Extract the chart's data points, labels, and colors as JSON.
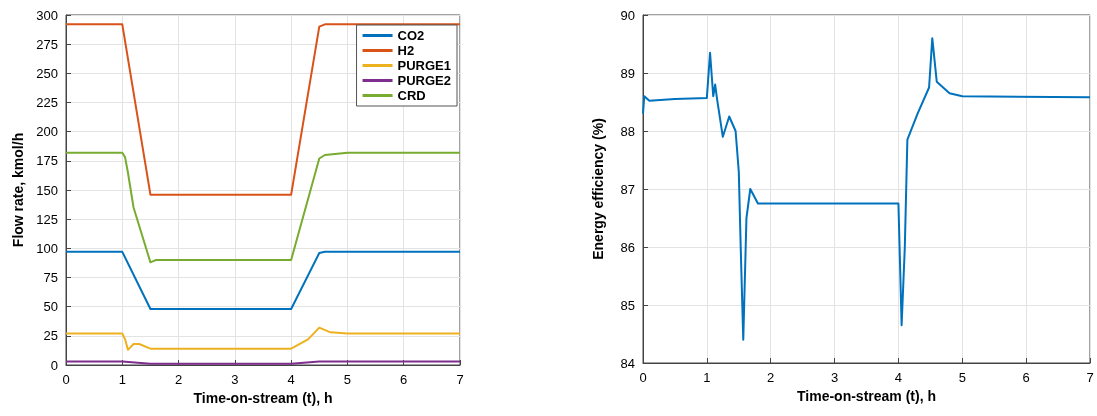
{
  "chart_data": [
    {
      "type": "line",
      "xlabel": "Time-on-stream (t), h",
      "ylabel": "Flow rate, kmol/h",
      "xlim": [
        0,
        7
      ],
      "xticks": [
        0,
        1,
        2,
        3,
        4,
        5,
        6,
        7
      ],
      "ylim": [
        0,
        300
      ],
      "yticks": [
        0,
        25,
        50,
        75,
        100,
        125,
        150,
        175,
        200,
        225,
        250,
        275,
        300
      ],
      "grid": true,
      "legend": "top right",
      "series": [
        {
          "name": "CO2",
          "color": "#0072bd",
          "x": [
            0,
            1,
            1.5,
            4,
            4.5,
            4.6,
            7
          ],
          "values": [
            97,
            97,
            48,
            48,
            96,
            97,
            97
          ]
        },
        {
          "name": "H2",
          "color": "#d95319",
          "x": [
            0,
            1,
            1.5,
            4,
            4.5,
            4.6,
            7
          ],
          "values": [
            292,
            292,
            146,
            146,
            290,
            292,
            292
          ]
        },
        {
          "name": "PURGE1",
          "color": "#edb120",
          "x": [
            0,
            1,
            1.05,
            1.1,
            1.2,
            1.3,
            1.5,
            4,
            4.3,
            4.5,
            4.7,
            5,
            7
          ],
          "values": [
            27,
            27,
            22,
            13,
            18,
            18,
            14,
            14,
            22,
            32,
            28,
            27,
            27
          ]
        },
        {
          "name": "PURGE2",
          "color": "#7e2f8e",
          "x": [
            0,
            1,
            1.5,
            4,
            4.5,
            7
          ],
          "values": [
            3,
            3,
            1,
            1,
            3,
            3
          ]
        },
        {
          "name": "CRD",
          "color": "#77ac30",
          "x": [
            0,
            1,
            1.05,
            1.1,
            1.2,
            1.5,
            1.55,
            1.6,
            4,
            4.5,
            4.6,
            5,
            7
          ],
          "values": [
            182,
            182,
            178,
            165,
            135,
            88,
            89,
            90,
            90,
            177,
            180,
            182,
            182
          ]
        }
      ]
    },
    {
      "type": "line",
      "xlabel": "Time-on-stream (t), h",
      "ylabel": "Energy efficiency (%)",
      "xlim": [
        0,
        7
      ],
      "xticks": [
        0,
        1,
        2,
        3,
        4,
        5,
        6,
        7
      ],
      "ylim": [
        84,
        90
      ],
      "yticks": [
        84,
        85,
        86,
        87,
        88,
        89,
        90
      ],
      "grid": true,
      "series": [
        {
          "color": "#0072bd",
          "x": [
            0,
            0.02,
            0.1,
            0.5,
            1,
            1.05,
            1.1,
            1.13,
            1.16,
            1.25,
            1.35,
            1.45,
            1.5,
            1.53,
            1.57,
            1.62,
            1.68,
            1.8,
            4,
            4.03,
            4.05,
            4.1,
            4.14,
            4.3,
            4.48,
            4.53,
            4.6,
            4.8,
            5,
            7
          ],
          "values": [
            88.3,
            88.6,
            88.52,
            88.55,
            88.57,
            89.35,
            88.6,
            88.8,
            88.55,
            87.9,
            88.25,
            88,
            87.3,
            86,
            84.4,
            86.5,
            87,
            86.75,
            86.75,
            85.5,
            84.65,
            86,
            87.85,
            88.3,
            88.75,
            89.6,
            88.85,
            88.65,
            88.6,
            88.58
          ]
        }
      ]
    }
  ]
}
